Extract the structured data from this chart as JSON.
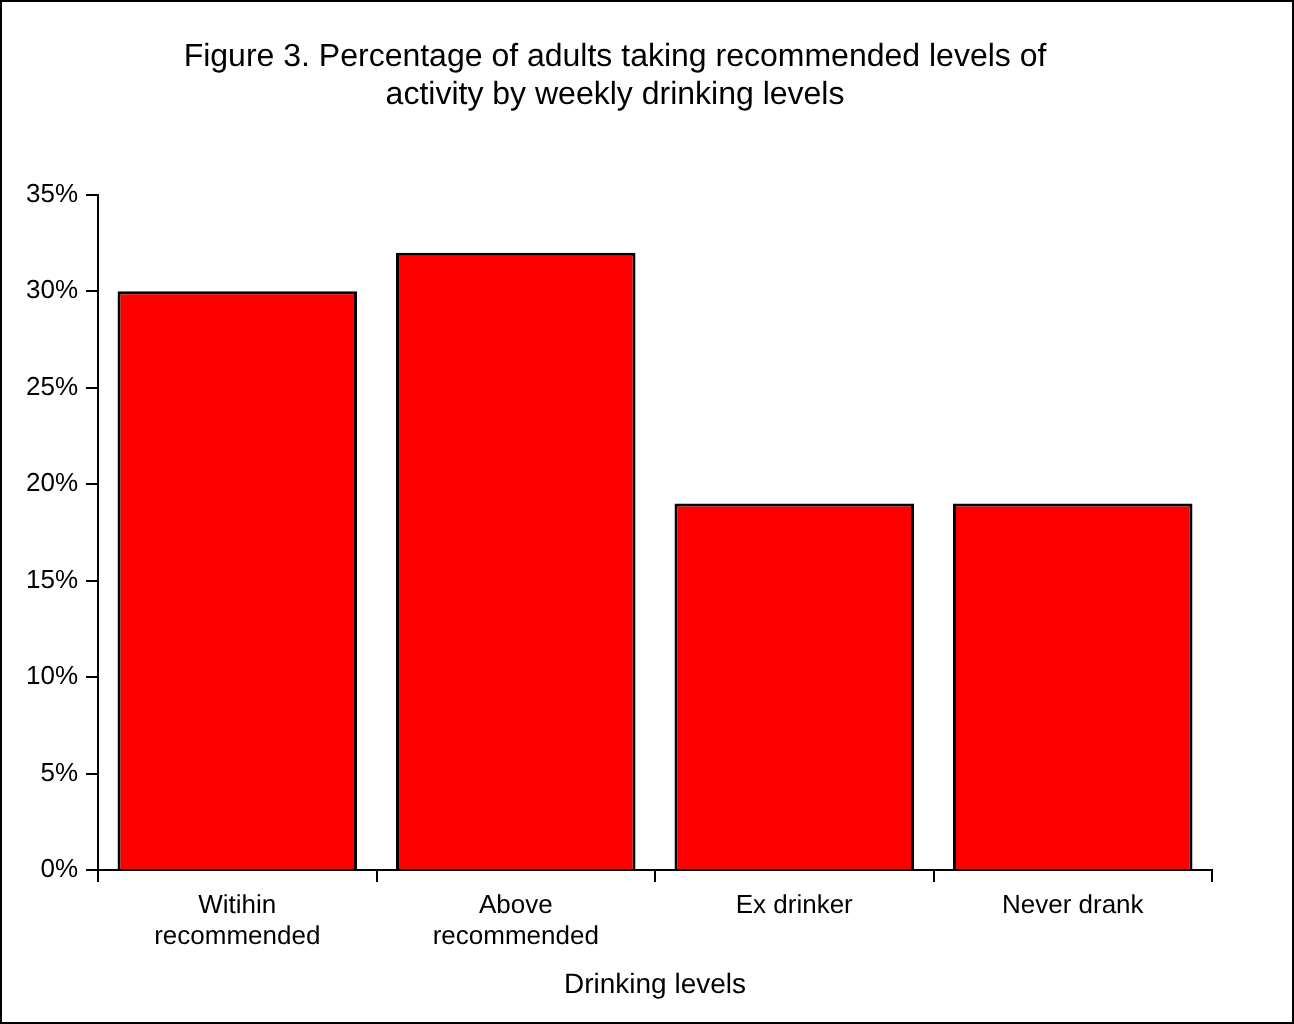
{
  "chart_data": {
    "type": "bar",
    "title": "Figure 3. Percentage of adults taking recommended levels of activity by weekly drinking levels",
    "xlabel": "Drinking levels",
    "categories": [
      "Witihin recommended",
      "Above recommended",
      "Ex drinker",
      "Never drank"
    ],
    "values": [
      30,
      32,
      19,
      19
    ],
    "color": "#ff0000",
    "ylim": [
      0,
      35
    ],
    "yticks": [
      {
        "value": 0,
        "label": "0%"
      },
      {
        "value": 5,
        "label": "5%"
      },
      {
        "value": 10,
        "label": "10%"
      },
      {
        "value": 15,
        "label": "15%"
      },
      {
        "value": 20,
        "label": "20%"
      },
      {
        "value": 25,
        "label": "25%"
      },
      {
        "value": 30,
        "label": "30%"
      },
      {
        "value": 35,
        "label": "35%"
      }
    ],
    "grid": false,
    "legend": false
  }
}
